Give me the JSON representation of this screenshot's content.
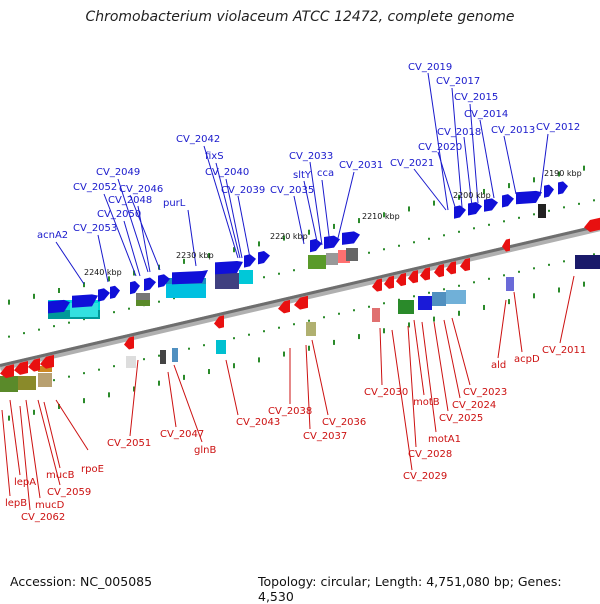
{
  "title": "Chromobacterium violaceum ATCC 12472, complete genome",
  "accession": "Accession: NC_005085",
  "footer_right": "Topology: circular; Length: 4,751,080 bp; Genes: 4,530",
  "ticks": [
    "2240 kbp",
    "2230 kbp",
    "2220 kbp",
    "2210 kbp",
    "2200 kbp",
    "2190 kbp"
  ],
  "genes_top": [
    "CV_2019",
    "CV_2017",
    "CV_2015",
    "CV_2014",
    "CV_2013",
    "CV_2012",
    "CV_2018",
    "CV_2020",
    "CV_2021",
    "CV_2042",
    "fixS",
    "CV_2040",
    "CV_2039",
    "CV_2033",
    "CV_2031",
    "cca",
    "sltY",
    "CV_2035",
    "CV_2049",
    "CV_2052",
    "CV_2046",
    "CV_2048",
    "CV_2050",
    "purL",
    "acnA2",
    "CV_2053"
  ],
  "genes_bottom": [
    "CV_2011",
    "acpD",
    "ald",
    "CV_2023",
    "CV_2024",
    "CV_2025",
    "motB",
    "motA1",
    "CV_2028",
    "CV_2029",
    "CV_2030",
    "CV_2036",
    "CV_2037",
    "CV_2038",
    "CV_2043",
    "glnB",
    "CV_2047",
    "CV_2051",
    "rpoE",
    "mucB",
    "CV_2059",
    "lepA",
    "mucD",
    "lepB",
    "CV_2062"
  ],
  "colors": {
    "blue_strand": "#1010d8",
    "red_strand": "#e81010",
    "backbone": "#808080",
    "top_label": "#1a1acc",
    "bottom_label": "#cc1111"
  }
}
